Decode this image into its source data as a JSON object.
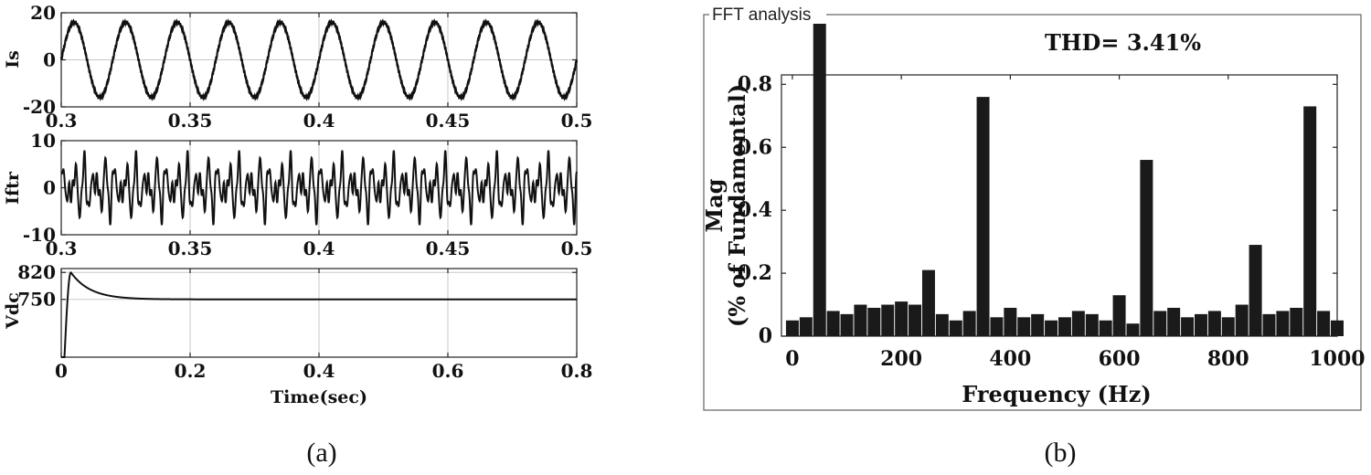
{
  "chart_data": [
    {
      "id": "is",
      "type": "line",
      "ylabel": "Is",
      "xlabel": "",
      "xlim": [
        0.3,
        0.5
      ],
      "ylim": [
        -20,
        20
      ],
      "xticks": [
        0.3,
        0.35,
        0.4,
        0.45,
        0.5
      ],
      "xtick_labels": [
        "0.3",
        "0.35",
        "0.4",
        "0.45",
        "0.5"
      ],
      "yticks": [
        -20,
        0,
        20
      ],
      "ytick_labels": [
        "-20",
        "0",
        "20"
      ],
      "signal": {
        "kind": "sine",
        "amplitude": 16,
        "frequency_hz": 50,
        "harmonic_ripple": 0.6
      }
    },
    {
      "id": "iftr",
      "type": "line",
      "ylabel": "Iftr",
      "xlabel": "",
      "xlim": [
        0.3,
        0.5
      ],
      "ylim": [
        -10,
        10
      ],
      "xticks": [
        0.3,
        0.35,
        0.4,
        0.45,
        0.5
      ],
      "xtick_labels": [
        "0.3",
        "0.35",
        "0.4",
        "0.45",
        "0.5"
      ],
      "yticks": [
        -10,
        0,
        10
      ],
      "ytick_labels": [
        "-10",
        "0",
        "10"
      ],
      "signal": {
        "kind": "harmonics",
        "components": [
          {
            "frequency_hz": 250,
            "amplitude": 3.4
          },
          {
            "frequency_hz": 350,
            "amplitude": 2.8
          },
          {
            "frequency_hz": 650,
            "amplitude": 1.3
          },
          {
            "frequency_hz": 850,
            "amplitude": 0.9
          }
        ]
      }
    },
    {
      "id": "vdc",
      "type": "line",
      "ylabel": "Vdc",
      "xlabel": "Time(sec)",
      "xlim": [
        0,
        0.8
      ],
      "ylim": [
        600,
        830
      ],
      "xticks": [
        0,
        0.2,
        0.4,
        0.6,
        0.8
      ],
      "xtick_labels": [
        "0",
        "0.2",
        "0.4",
        "0.6",
        "0.8"
      ],
      "yticks": [
        750,
        820
      ],
      "ytick_labels": [
        "750",
        "820"
      ],
      "signal": {
        "kind": "dc_response",
        "final": 750,
        "peak": 820,
        "peak_time": 0.015,
        "rise_start": 0.005,
        "decay_tau": 0.03
      }
    },
    {
      "id": "fft",
      "type": "bar",
      "panel_title": "FFT analysis",
      "annotation": "THD= 3.41%",
      "xlabel": "Frequency (Hz)",
      "ylabel_line1": "Mag",
      "ylabel_line2": "(% of Fundamental)",
      "xlim": [
        -20,
        1000
      ],
      "ylim": [
        0,
        0.83
      ],
      "xticks": [
        0,
        200,
        400,
        600,
        800,
        1000
      ],
      "xtick_labels": [
        "0",
        "200",
        "400",
        "600",
        "800",
        "1000"
      ],
      "yticks": [
        0,
        0.2,
        0.4,
        0.6,
        0.8
      ],
      "ytick_labels": [
        "0",
        "0.2",
        "0.4",
        "0.6",
        "0.8"
      ],
      "bars": [
        {
          "f": 0,
          "v": 0.05
        },
        {
          "f": 25,
          "v": 0.06
        },
        {
          "f": 50,
          "v": 1.0
        },
        {
          "f": 75,
          "v": 0.08
        },
        {
          "f": 100,
          "v": 0.07
        },
        {
          "f": 125,
          "v": 0.1
        },
        {
          "f": 150,
          "v": 0.09
        },
        {
          "f": 175,
          "v": 0.1
        },
        {
          "f": 200,
          "v": 0.11
        },
        {
          "f": 225,
          "v": 0.1
        },
        {
          "f": 250,
          "v": 0.21
        },
        {
          "f": 275,
          "v": 0.07
        },
        {
          "f": 300,
          "v": 0.05
        },
        {
          "f": 325,
          "v": 0.08
        },
        {
          "f": 350,
          "v": 0.76
        },
        {
          "f": 375,
          "v": 0.06
        },
        {
          "f": 400,
          "v": 0.09
        },
        {
          "f": 425,
          "v": 0.06
        },
        {
          "f": 450,
          "v": 0.07
        },
        {
          "f": 475,
          "v": 0.05
        },
        {
          "f": 500,
          "v": 0.06
        },
        {
          "f": 525,
          "v": 0.08
        },
        {
          "f": 550,
          "v": 0.07
        },
        {
          "f": 575,
          "v": 0.05
        },
        {
          "f": 600,
          "v": 0.13
        },
        {
          "f": 625,
          "v": 0.04
        },
        {
          "f": 650,
          "v": 0.56
        },
        {
          "f": 675,
          "v": 0.08
        },
        {
          "f": 700,
          "v": 0.09
        },
        {
          "f": 725,
          "v": 0.06
        },
        {
          "f": 750,
          "v": 0.07
        },
        {
          "f": 775,
          "v": 0.08
        },
        {
          "f": 800,
          "v": 0.06
        },
        {
          "f": 825,
          "v": 0.1
        },
        {
          "f": 850,
          "v": 0.29
        },
        {
          "f": 875,
          "v": 0.07
        },
        {
          "f": 900,
          "v": 0.08
        },
        {
          "f": 925,
          "v": 0.09
        },
        {
          "f": 950,
          "v": 0.73
        },
        {
          "f": 975,
          "v": 0.08
        },
        {
          "f": 1000,
          "v": 0.05
        }
      ]
    }
  ],
  "captions": {
    "a": "(a)",
    "b": "(b)"
  }
}
